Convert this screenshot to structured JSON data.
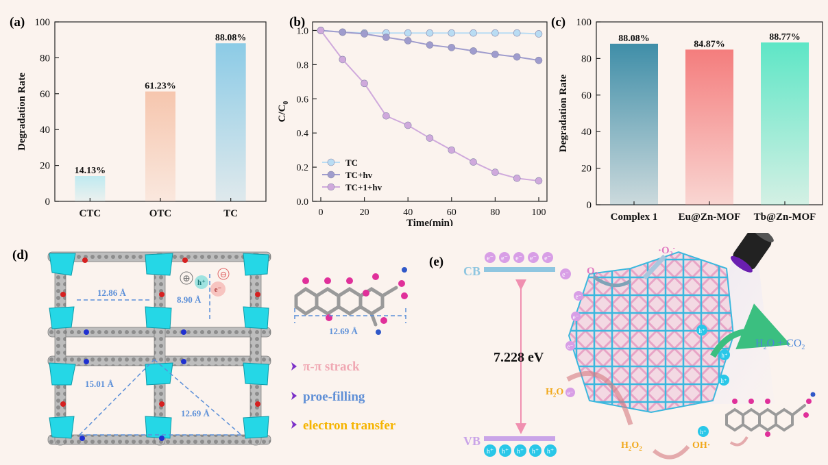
{
  "chart_data": [
    {
      "panel": "(a)",
      "type": "bar",
      "ylabel": "Degradation Rate",
      "ylim": [
        0,
        100
      ],
      "yticks": [
        0,
        20,
        40,
        60,
        80,
        100
      ],
      "categories": [
        "CTC",
        "OTC",
        "TC"
      ],
      "values": [
        14.13,
        61.23,
        88.08
      ],
      "value_labels": [
        "14.13%",
        "61.23%",
        "88.08%"
      ],
      "colors": [
        "#bfeaf0",
        "#f6c6ae",
        "#8ccbe6"
      ]
    },
    {
      "panel": "(b)",
      "type": "line",
      "xlabel": "Time(min)",
      "ylabel": "C/C",
      "ylabel_sub": "0",
      "xlim": [
        0,
        100
      ],
      "ylim": [
        0.0,
        1.05
      ],
      "xticks": [
        0,
        20,
        40,
        60,
        80,
        100
      ],
      "yticks": [
        "0.0",
        "0.2",
        "0.4",
        "0.6",
        "0.8",
        "1.0"
      ],
      "x": [
        0,
        10,
        20,
        30,
        40,
        50,
        60,
        70,
        80,
        90,
        100
      ],
      "series": [
        {
          "name": "TC",
          "color": "#b9dcf3",
          "values": [
            1.0,
            0.99,
            0.985,
            0.985,
            0.985,
            0.985,
            0.985,
            0.985,
            0.985,
            0.985,
            0.98
          ]
        },
        {
          "name": "TC+hv",
          "color": "#9f9ccd",
          "values": [
            1.0,
            0.99,
            0.98,
            0.96,
            0.94,
            0.915,
            0.9,
            0.88,
            0.86,
            0.845,
            0.825
          ]
        },
        {
          "name": "TC+1+hv",
          "color": "#cfa9dc",
          "values": [
            1.0,
            0.83,
            0.69,
            0.5,
            0.445,
            0.37,
            0.3,
            0.23,
            0.17,
            0.135,
            0.12
          ]
        }
      ]
    },
    {
      "panel": "(c)",
      "type": "bar",
      "ylabel": "Degradation Rate",
      "ylim": [
        0,
        100
      ],
      "yticks": [
        0,
        20,
        40,
        60,
        80,
        100
      ],
      "categories": [
        "Complex 1",
        "Eu@Zn-MOF",
        "Tb@Zn-MOF"
      ],
      "values": [
        88.08,
        84.87,
        88.77
      ],
      "value_labels": [
        "88.08%",
        "84.87%",
        "88.77%"
      ],
      "colors": [
        "#3f8ea8",
        "#f47d7d",
        "#5ee6c6"
      ]
    }
  ],
  "panel_d": {
    "label": "(d)",
    "dimensions": [
      "12.86 Å",
      "8.90 Å",
      "12.69 Å",
      "15.01 Å",
      "12.69 Å"
    ],
    "charges": [
      "⊕",
      "h⁺",
      "⊖",
      "e⁻"
    ],
    "notes": [
      {
        "text": "π-π strack",
        "color": "#f0a8b3"
      },
      {
        "text": "proe-filling",
        "color": "#5f8fd6"
      },
      {
        "text": "electron transfer",
        "color": "#f5b400"
      }
    ]
  },
  "panel_e": {
    "label": "(e)",
    "cb": "CB",
    "vb": "VB",
    "gap": "7.228 eV",
    "electron": "e⁻",
    "hole": "h⁺",
    "o2": "O",
    "o2_sub": "2",
    "superoxide": "·O",
    "superoxide_sub": "2",
    "superoxide_sup": "-",
    "h2o": "H",
    "h2o_sub": "2",
    "h2o_tail": "O",
    "h2o2": "H",
    "h2o2_sub1": "2",
    "h2o2_mid": "O",
    "h2o2_sub2": "2",
    "oh": "OH·",
    "products": "H",
    "products_sub1": "2",
    "products_mid": "O + CO",
    "products_sub2": "2"
  }
}
